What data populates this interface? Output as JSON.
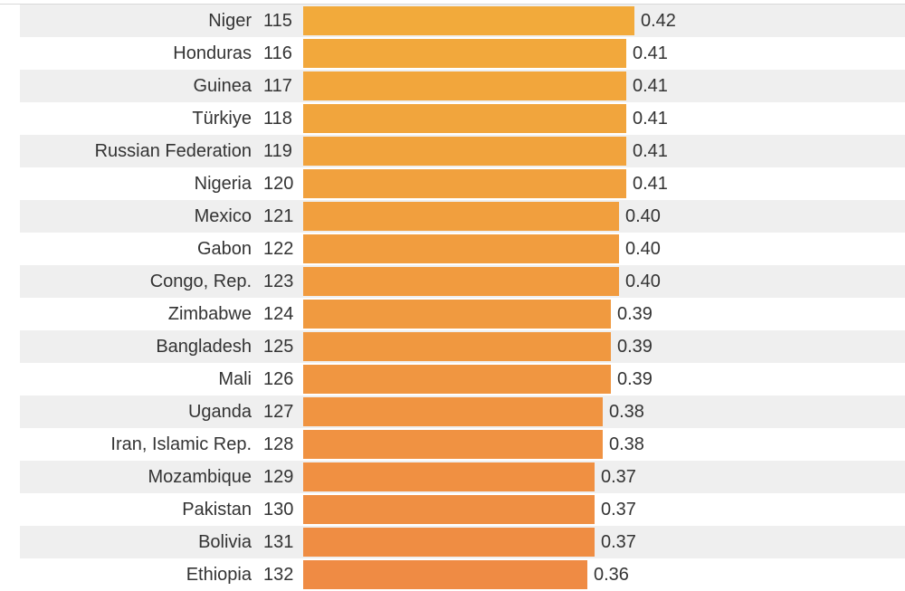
{
  "chart_data": {
    "type": "bar",
    "orientation": "horizontal",
    "categories": [
      "Niger",
      "Honduras",
      "Guinea",
      "Türkiye",
      "Russian Federation",
      "Nigeria",
      "Mexico",
      "Gabon",
      "Congo, Rep.",
      "Zimbabwe",
      "Bangladesh",
      "Mali",
      "Uganda",
      "Iran, Islamic Rep.",
      "Mozambique",
      "Pakistan",
      "Bolivia",
      "Ethiopia"
    ],
    "ranks": [
      "115",
      "116",
      "117",
      "118",
      "119",
      "120",
      "121",
      "122",
      "123",
      "124",
      "125",
      "126",
      "127",
      "128",
      "129",
      "130",
      "131",
      "132"
    ],
    "values": [
      0.42,
      0.41,
      0.41,
      0.41,
      0.41,
      0.41,
      0.4,
      0.4,
      0.4,
      0.39,
      0.39,
      0.39,
      0.38,
      0.38,
      0.37,
      0.37,
      0.37,
      0.36
    ],
    "value_labels": [
      "0.42",
      "0.41",
      "0.41",
      "0.41",
      "0.41",
      "0.41",
      "0.40",
      "0.40",
      "0.40",
      "0.39",
      "0.39",
      "0.39",
      "0.38",
      "0.38",
      "0.37",
      "0.37",
      "0.37",
      "0.36"
    ],
    "xlim": [
      0,
      0.42
    ],
    "grid": false,
    "legend": "none"
  },
  "colors": {
    "bar_start": "#f2aa3b",
    "bar_end": "#ef8b44",
    "row_stripe": "#efefef",
    "text": "#333333"
  }
}
